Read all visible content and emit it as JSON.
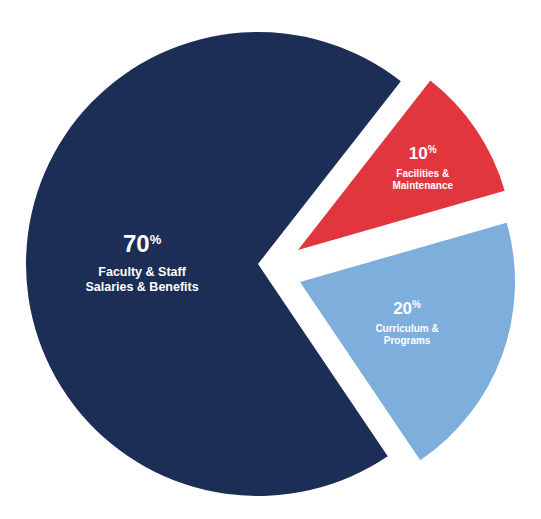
{
  "chart_data": {
    "type": "pie",
    "categories": [
      "Faculty & Staff\nSalaries & Benefits",
      "Curriculum &\nPrograms",
      "Facilities &\nMaintenance"
    ],
    "values": [
      70,
      20,
      10
    ],
    "value_labels": [
      "70%",
      "20%",
      "10%"
    ],
    "colors": [
      "#1c2e56",
      "#7eaedb",
      "#e2363f"
    ],
    "data_labels": true
  }
}
